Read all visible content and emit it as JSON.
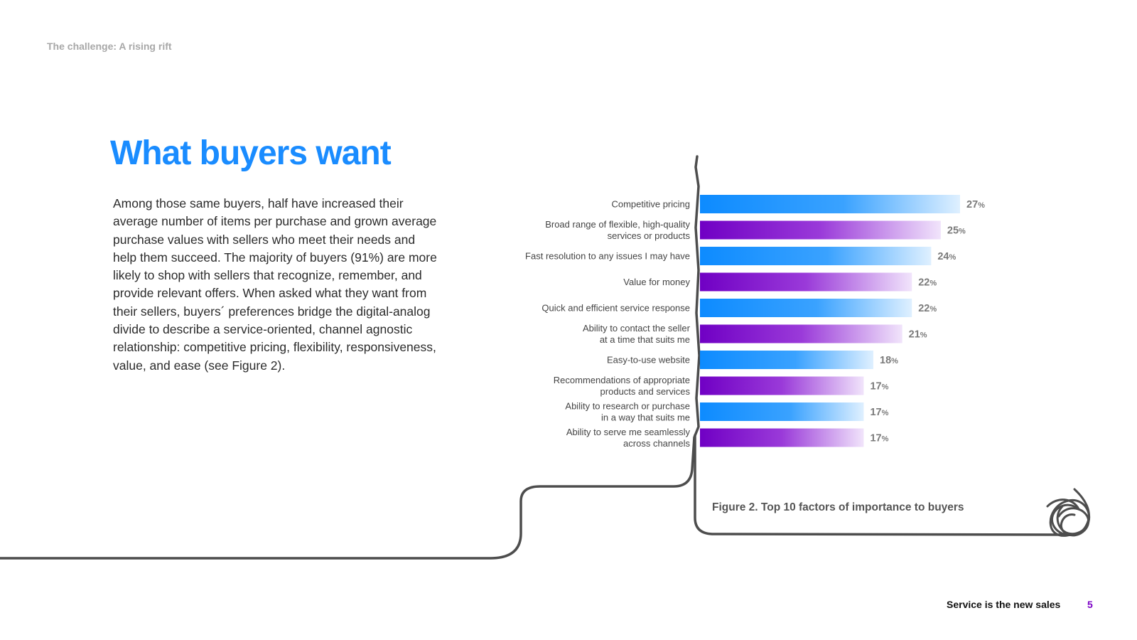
{
  "section_label": "The challenge: A rising rift",
  "title": "What buyers want",
  "body_text": "Among those same buyers, half have increased their average number of items per purchase and grown average purchase values with sellers who meet their needs and help them succeed. The majority of buyers (91%) are more likely to shop with sellers that recognize, remember, and provide relevant offers. When asked what they want from their sellers, buyers´ preferences bridge the digital-analog divide to describe a service-oriented, channel agnostic relationship: competitive pricing, flexibility, responsiveness, value, and ease (see Figure 2).",
  "colors": {
    "title_blue": "#1a8cff",
    "bar_blue": "#0d8bff",
    "bar_purple": "#7000c4",
    "line_gray": "#4d4d4d",
    "footer_purple": "#7b00c6"
  },
  "chart_data": {
    "type": "bar",
    "orientation": "horizontal",
    "title": "Figure 2.  Top 10 factors of importance to buyers",
    "categories": [
      [
        "Competitive pricing"
      ],
      [
        "Broad range of flexible, high-quality",
        "services or products"
      ],
      [
        "Fast resolution to any issues I may have"
      ],
      [
        "Value for money"
      ],
      [
        "Quick and efficient service response"
      ],
      [
        "Ability to contact the seller",
        "at a time that suits me"
      ],
      [
        "Easy-to-use website"
      ],
      [
        "Recommendations of appropriate",
        "products and services"
      ],
      [
        "Ability to research or purchase",
        "in a way that suits me"
      ],
      [
        "Ability to serve me seamlessly",
        "across channels"
      ]
    ],
    "values": [
      27,
      25,
      24,
      22,
      22,
      21,
      18,
      17,
      17,
      17
    ],
    "value_suffix": "%",
    "bar_colors": [
      "blue",
      "purple",
      "blue",
      "purple",
      "blue",
      "purple",
      "blue",
      "purple",
      "blue",
      "purple"
    ],
    "xlim": [
      0,
      27
    ],
    "grid": false,
    "xlabel": "",
    "ylabel": ""
  },
  "footer": {
    "title": "Service is the new sales",
    "page_number": "5"
  }
}
